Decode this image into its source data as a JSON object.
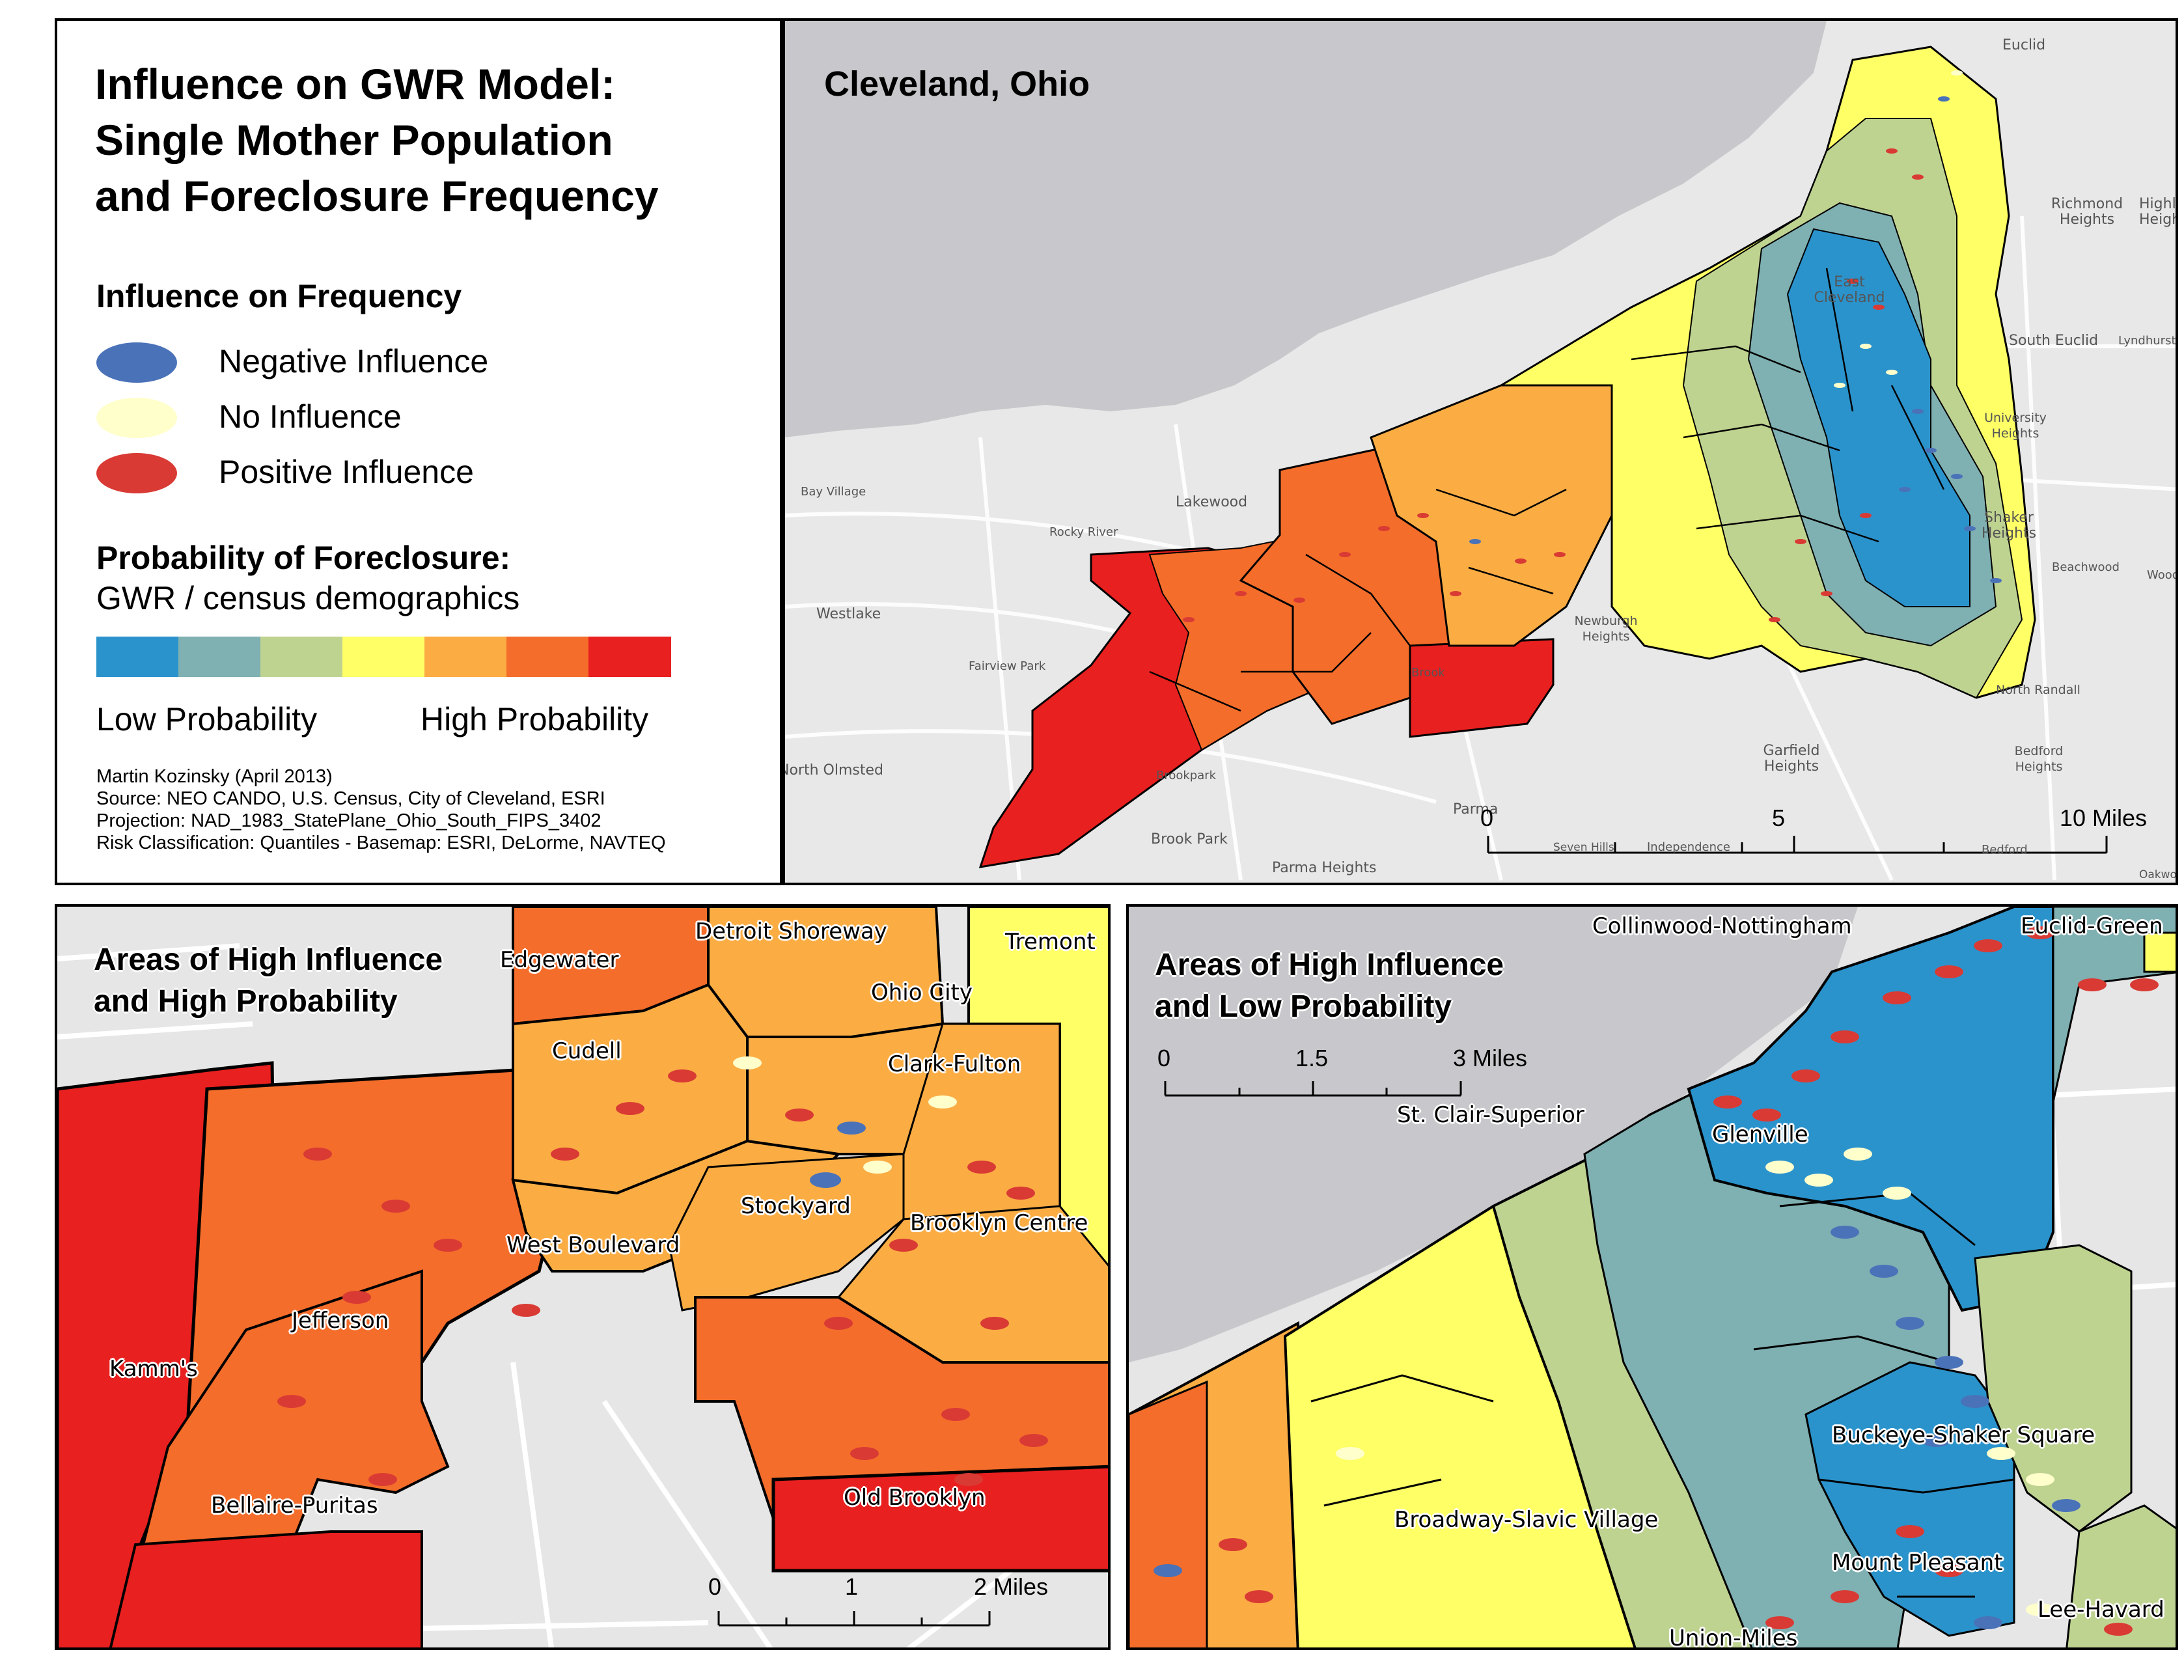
{
  "legend": {
    "title_lines": [
      "Influence on GWR Model:",
      "Single Mother Population",
      "and Foreclosure Frequency"
    ],
    "influence_heading": "Influence on Frequency",
    "influence_items": [
      {
        "label": "Negative Influence",
        "color": "#4a72b8"
      },
      {
        "label": "No Influence",
        "color": "#ffffcc"
      },
      {
        "label": "Positive Influence",
        "color": "#d93a34"
      }
    ],
    "probability_heading": "Probability of Foreclosure:",
    "probability_subheading": "GWR / census demographics",
    "ramp_colors": [
      "#2b93cc",
      "#7fb0b2",
      "#bfd391",
      "#ffff66",
      "#fbad44",
      "#f46d2b",
      "#e8201f"
    ],
    "low_label": "Low Probability",
    "high_label": "High Probability",
    "credits": [
      "Martin Kozinsky (April 2013)",
      "Source: NEO CANDO, U.S. Census, City of Cleveland, ESRI",
      "Projection: NAD_1983_StatePlane_Ohio_South_FIPS_3402",
      "Risk Classification: Quantiles - Basemap: ESRI, DeLorme, NAVTEQ"
    ]
  },
  "main_map": {
    "title": "Cleveland, Ohio",
    "places": [
      "Euclid",
      "Richmond Heights",
      "Highland Heights",
      "East Cleveland",
      "South Euclid",
      "Lyndhurst",
      "University Heights",
      "Shaker Heights",
      "Beachwood",
      "Woodmere",
      "Bay Village",
      "Lakewood",
      "Rocky River",
      "Westlake",
      "Fairview Park",
      "Newburgh Heights",
      "Brooklyn",
      "North Randall",
      "Garfield Heights",
      "Bedford Heights",
      "North Olmsted",
      "Brookpark",
      "Parma",
      "Brook Park",
      "Parma Heights",
      "Seven Hills",
      "Independence",
      "Bedford",
      "Oakwood"
    ],
    "scale_labels": [
      "0",
      "5",
      "10 Miles"
    ]
  },
  "inset_high": {
    "title_lines": [
      "Areas of High Influence",
      "and High Probability"
    ],
    "neighborhoods": [
      "Edgewater",
      "Detroit Shoreway",
      "Tremont",
      "Ohio City",
      "Cudell",
      "Clark-Fulton",
      "Stockyard",
      "West Boulevard",
      "Brooklyn Centre",
      "Jefferson",
      "Kamm's",
      "Bellaire-Puritas",
      "Old Brooklyn"
    ],
    "scale_labels": [
      "0",
      "1",
      "2 Miles"
    ]
  },
  "inset_low": {
    "title_lines": [
      "Areas of High Influence",
      "and Low Probability"
    ],
    "neighborhoods": [
      "Collinwood-Nottingham",
      "Euclid-Green",
      "St. Clair-Superior",
      "Glenville",
      "Buckeye-Shaker Square",
      "Broadway-Slavic Village",
      "Mount Pleasant",
      "Lee-Havard",
      "Union-Miles"
    ],
    "scale_labels": [
      "0",
      "1.5",
      "3 Miles"
    ]
  }
}
